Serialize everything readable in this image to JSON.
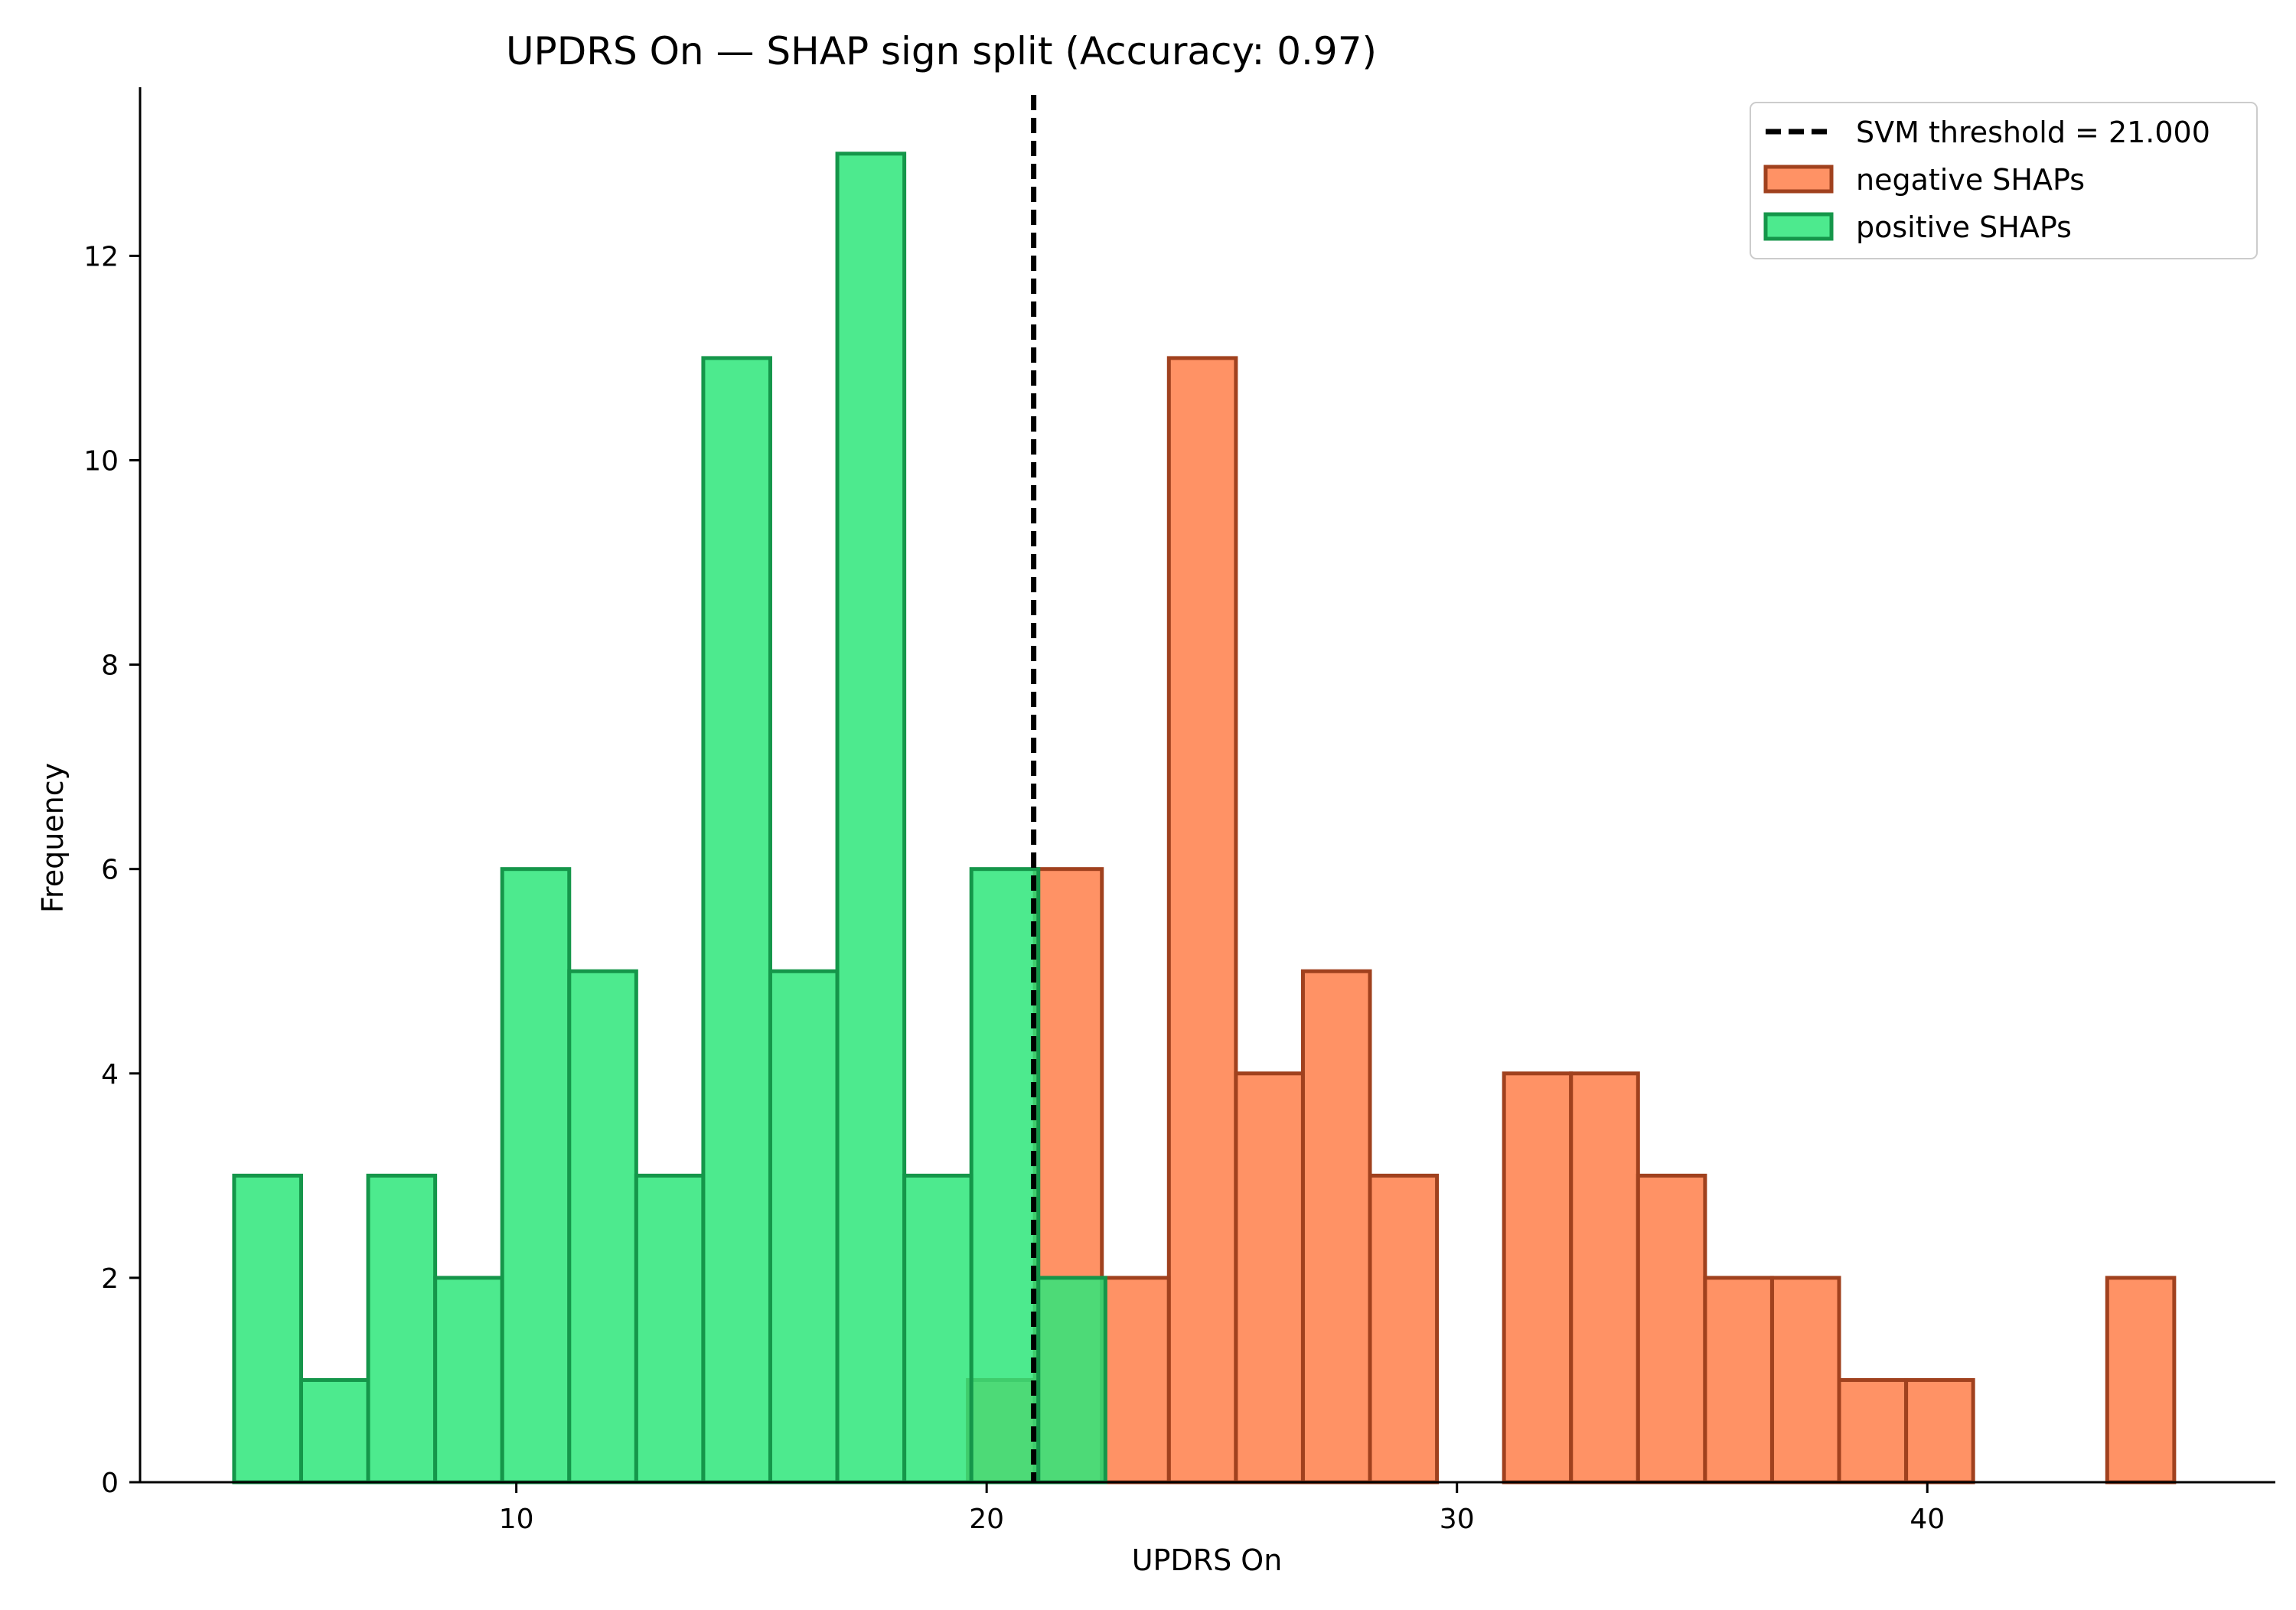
{
  "chart_data": {
    "type": "bar",
    "title": "UPDRS On — SHAP sign split (Accuracy: 0.97)",
    "xlabel": "UPDRS On",
    "ylabel": "Frequency",
    "xlim": [
      2.0,
      47.4
    ],
    "ylim": [
      0,
      13.65
    ],
    "xticks": [
      10,
      20,
      30,
      40
    ],
    "yticks": [
      0,
      2,
      4,
      6,
      8,
      10,
      12
    ],
    "legend_position": "top-right",
    "grid": false,
    "threshold": {
      "label": "SVM threshold = 21.000",
      "value": 21.0,
      "color": "#000000"
    },
    "series": [
      {
        "name": "negative SHAPs",
        "color": "#ff7f4a",
        "edge_color": "#a0411e",
        "bin_start": 19.6,
        "bin_width": 1.425,
        "values": [
          1,
          6,
          2,
          11,
          4,
          5,
          3,
          0,
          4,
          4,
          3,
          2,
          2,
          1,
          1,
          0,
          0,
          2
        ]
      },
      {
        "name": "positive SHAPs",
        "color": "#2ee67a",
        "edge_color": "#15964a",
        "bin_start": 4.0,
        "bin_width": 1.425,
        "values": [
          3,
          1,
          3,
          2,
          6,
          5,
          3,
          11,
          5,
          13,
          3,
          6,
          2
        ]
      }
    ]
  }
}
